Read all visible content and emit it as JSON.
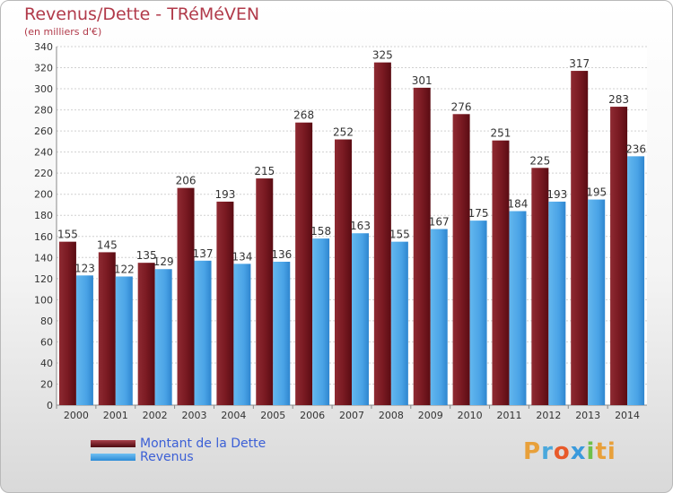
{
  "header": {
    "title": "Revenus/Dette - TRéMéVEN",
    "subtitle": "(en milliers d'€)"
  },
  "logo_text": "Proxiti",
  "colors": {
    "debt": "#7a1a22",
    "revenue": "#4aa3e6",
    "title": "#b13a4a",
    "legend_text": "#3b5fd6"
  },
  "chart_data": {
    "type": "bar",
    "title": "Revenus/Dette - TRéMéVEN",
    "subtitle": "(en milliers d'€)",
    "categories": [
      "2000",
      "2001",
      "2002",
      "2003",
      "2004",
      "2005",
      "2006",
      "2007",
      "2008",
      "2009",
      "2010",
      "2011",
      "2012",
      "2013",
      "2014"
    ],
    "series": [
      {
        "name": "Montant de la Dette",
        "values": [
          155,
          145,
          135,
          206,
          193,
          215,
          268,
          252,
          325,
          301,
          276,
          251,
          225,
          317,
          283
        ]
      },
      {
        "name": "Revenus",
        "values": [
          123,
          122,
          129,
          137,
          134,
          136,
          158,
          163,
          155,
          167,
          175,
          184,
          193,
          195,
          236
        ]
      }
    ],
    "ylim": [
      0,
      340
    ],
    "ytick_step": 20,
    "grid": true,
    "legend_position": "bottom-left"
  }
}
